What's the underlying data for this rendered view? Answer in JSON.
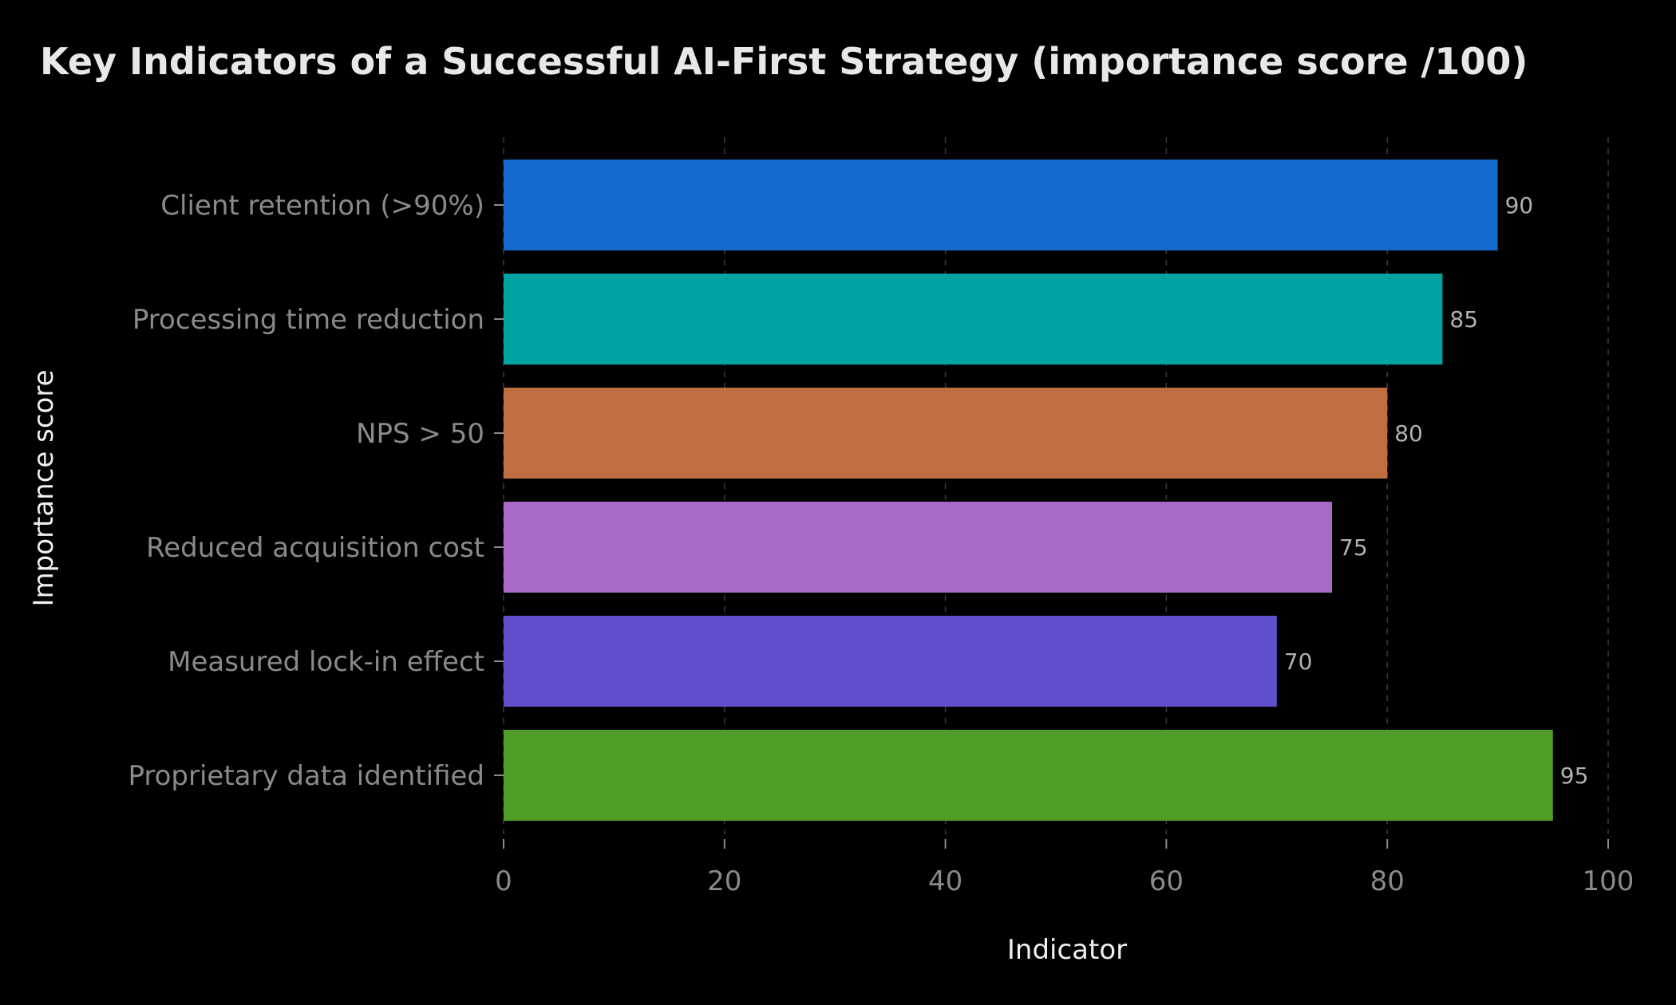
{
  "chart_data": {
    "type": "bar",
    "orientation": "horizontal",
    "title": "Key Indicators of a Successful AI-First Strategy (importance score /100)",
    "xlabel": "Indicator",
    "ylabel": "Importance score",
    "categories": [
      "Client retention (>90%)",
      "Processing time reduction",
      "NPS > 50",
      "Reduced acquisition cost",
      "Measured lock-in effect",
      "Proprietary data identified"
    ],
    "values": [
      90,
      85,
      80,
      75,
      70,
      95
    ],
    "colors": [
      "#126bcd",
      "#02a3a3",
      "#c06e40",
      "#a869c9",
      "#6050cc",
      "#4f9d27"
    ],
    "xlim": [
      0,
      100
    ],
    "xticks": [
      0,
      20,
      40,
      60,
      80,
      100
    ],
    "grid": true,
    "legend": "none"
  }
}
